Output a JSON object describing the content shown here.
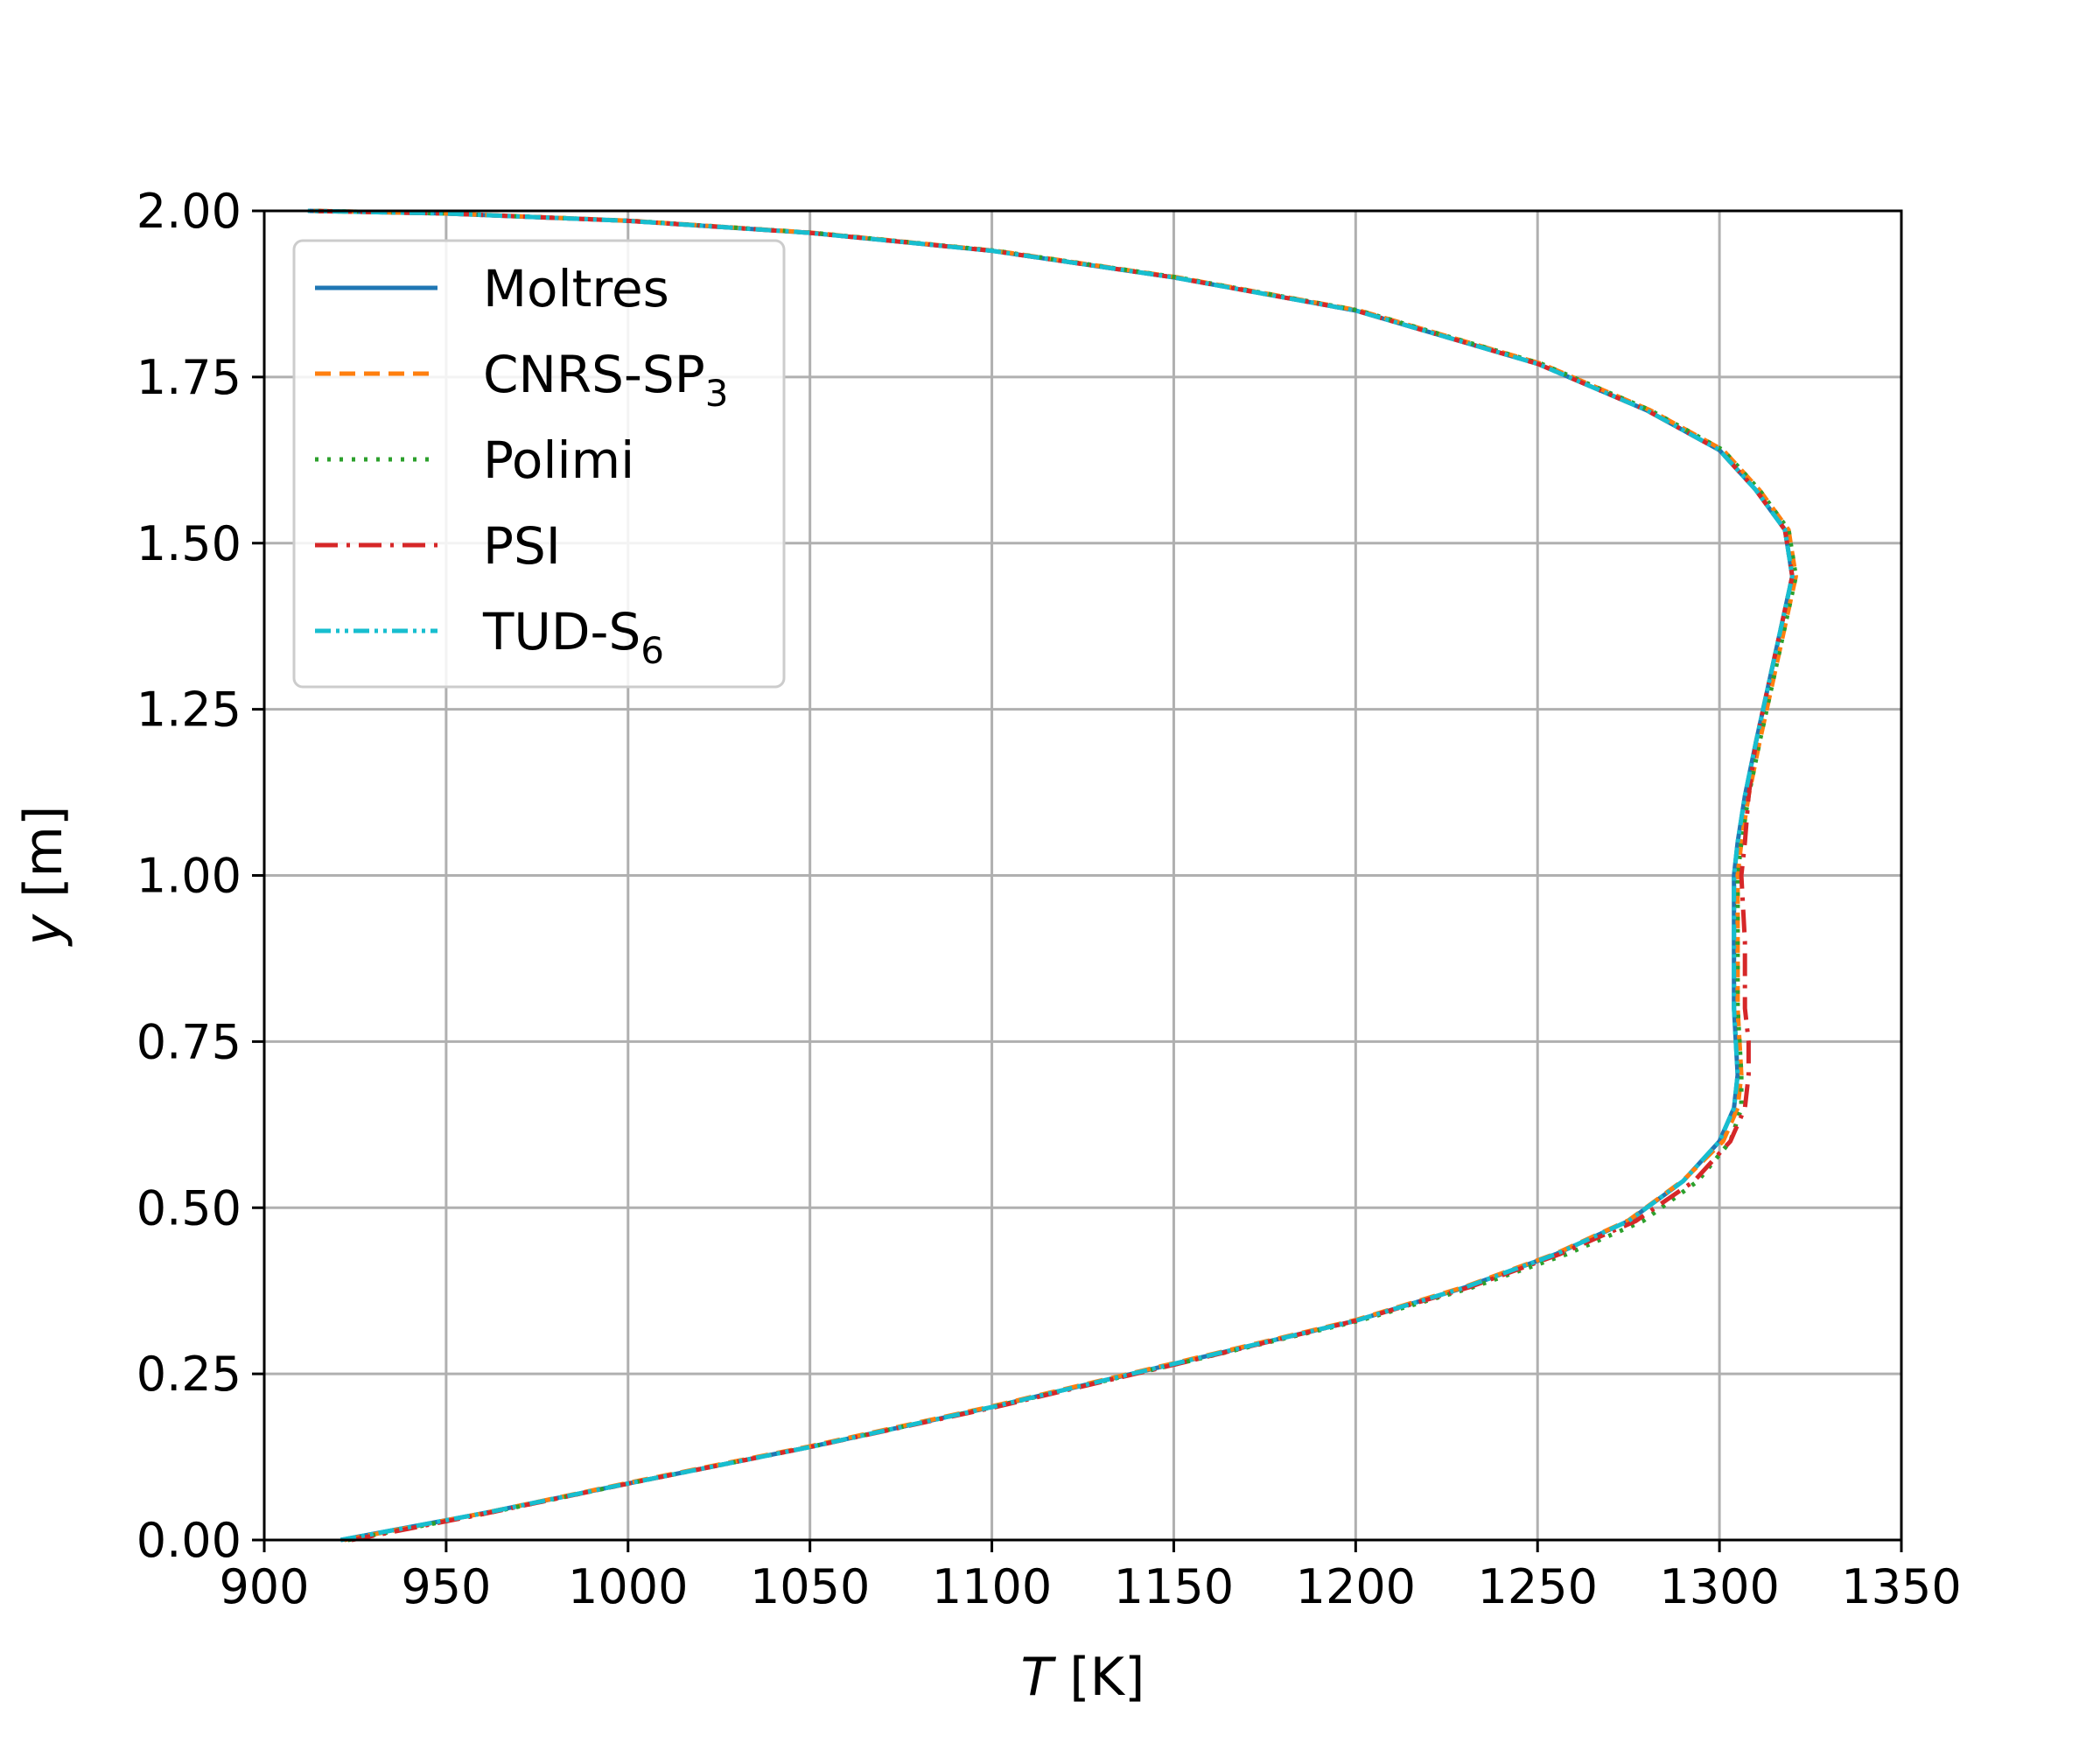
{
  "chart_data": {
    "type": "line",
    "xlabel": {
      "var": "T",
      "unit": " [K]"
    },
    "ylabel": {
      "var": "y",
      "unit": " [m]"
    },
    "xlim": [
      900,
      1350
    ],
    "ylim": [
      0,
      2
    ],
    "grid": true,
    "legend_position": "top-left",
    "xticks": [
      "900",
      "950",
      "1000",
      "1050",
      "1100",
      "1150",
      "1200",
      "1250",
      "1300",
      "1350"
    ],
    "yticks": [
      "0.00",
      "0.25",
      "0.50",
      "0.75",
      "1.00",
      "1.25",
      "1.50",
      "1.75",
      "2.00"
    ],
    "series": [
      {
        "name": "Moltres",
        "sub": "",
        "color": "#1f77b4",
        "dash": "",
        "points": [
          [
            921,
            0
          ],
          [
            960,
            0.04
          ],
          [
            1000,
            0.085
          ],
          [
            1050,
            0.14
          ],
          [
            1100,
            0.2
          ],
          [
            1150,
            0.265
          ],
          [
            1200,
            0.33
          ],
          [
            1230,
            0.38
          ],
          [
            1255,
            0.43
          ],
          [
            1275,
            0.48
          ],
          [
            1290,
            0.54
          ],
          [
            1300,
            0.6
          ],
          [
            1304,
            0.65
          ],
          [
            1305,
            0.7
          ],
          [
            1304,
            0.8
          ],
          [
            1304,
            0.9
          ],
          [
            1304,
            1.0
          ],
          [
            1305,
            1.05
          ],
          [
            1307,
            1.12
          ],
          [
            1310,
            1.2
          ],
          [
            1314,
            1.3
          ],
          [
            1318,
            1.4
          ],
          [
            1320,
            1.45
          ],
          [
            1318,
            1.52
          ],
          [
            1310,
            1.58
          ],
          [
            1300,
            1.64
          ],
          [
            1280,
            1.7
          ],
          [
            1250,
            1.77
          ],
          [
            1200,
            1.85
          ],
          [
            1150,
            1.9
          ],
          [
            1100,
            1.94
          ],
          [
            1050,
            1.967
          ],
          [
            1000,
            1.985
          ],
          [
            950,
            1.996
          ],
          [
            912,
            2.0
          ]
        ]
      },
      {
        "name": "CNRS-SP",
        "sub": "3",
        "color": "#ff7f0e",
        "dash": "18 10",
        "points": [
          [
            922,
            0
          ],
          [
            960,
            0.04
          ],
          [
            1000,
            0.086
          ],
          [
            1050,
            0.141
          ],
          [
            1100,
            0.201
          ],
          [
            1150,
            0.266
          ],
          [
            1200,
            0.331
          ],
          [
            1230,
            0.381
          ],
          [
            1255,
            0.431
          ],
          [
            1275,
            0.481
          ],
          [
            1290,
            0.541
          ],
          [
            1301,
            0.6
          ],
          [
            1305,
            0.65
          ],
          [
            1306,
            0.7
          ],
          [
            1305,
            0.8
          ],
          [
            1305,
            0.9
          ],
          [
            1305,
            1.0
          ],
          [
            1306,
            1.05
          ],
          [
            1308,
            1.12
          ],
          [
            1311,
            1.2
          ],
          [
            1315,
            1.3
          ],
          [
            1319,
            1.4
          ],
          [
            1321,
            1.45
          ],
          [
            1319,
            1.52
          ],
          [
            1311,
            1.58
          ],
          [
            1301,
            1.64
          ],
          [
            1281,
            1.7
          ],
          [
            1251,
            1.77
          ],
          [
            1201,
            1.85
          ],
          [
            1151,
            1.9
          ],
          [
            1101,
            1.94
          ],
          [
            1051,
            1.967
          ],
          [
            1001,
            1.985
          ],
          [
            951,
            1.996
          ],
          [
            913,
            2.0
          ]
        ]
      },
      {
        "name": "Polimi",
        "sub": "",
        "color": "#2ca02c",
        "dash": "4 10",
        "points": [
          [
            923,
            0
          ],
          [
            961,
            0.04
          ],
          [
            1001,
            0.086
          ],
          [
            1051,
            0.141
          ],
          [
            1101,
            0.201
          ],
          [
            1151,
            0.265
          ],
          [
            1201,
            0.33
          ],
          [
            1232,
            0.38
          ],
          [
            1258,
            0.43
          ],
          [
            1279,
            0.48
          ],
          [
            1294,
            0.54
          ],
          [
            1303,
            0.6
          ],
          [
            1306,
            0.65
          ],
          [
            1306,
            0.7
          ],
          [
            1305,
            0.8
          ],
          [
            1305,
            0.9
          ],
          [
            1305,
            1.0
          ],
          [
            1306,
            1.05
          ],
          [
            1308,
            1.12
          ],
          [
            1311,
            1.2
          ],
          [
            1315,
            1.3
          ],
          [
            1319,
            1.4
          ],
          [
            1321,
            1.45
          ],
          [
            1319,
            1.52
          ],
          [
            1311,
            1.58
          ],
          [
            1301,
            1.64
          ],
          [
            1281,
            1.7
          ],
          [
            1251,
            1.77
          ],
          [
            1201,
            1.85
          ],
          [
            1151,
            1.9
          ],
          [
            1101,
            1.94
          ],
          [
            1051,
            1.967
          ],
          [
            1001,
            1.985
          ],
          [
            951,
            1.996
          ],
          [
            913,
            2.0
          ]
        ]
      },
      {
        "name": "PSI",
        "sub": "",
        "color": "#d62728",
        "dash": "26 10 4 10",
        "points": [
          [
            924,
            0
          ],
          [
            961,
            0.04
          ],
          [
            1001,
            0.086
          ],
          [
            1051,
            0.141
          ],
          [
            1101,
            0.2
          ],
          [
            1151,
            0.265
          ],
          [
            1200,
            0.33
          ],
          [
            1231,
            0.38
          ],
          [
            1256,
            0.43
          ],
          [
            1277,
            0.48
          ],
          [
            1293,
            0.54
          ],
          [
            1303,
            0.6
          ],
          [
            1307,
            0.65
          ],
          [
            1308,
            0.7
          ],
          [
            1308,
            0.75
          ],
          [
            1307,
            0.8
          ],
          [
            1307,
            0.9
          ],
          [
            1306,
            1.0
          ],
          [
            1307,
            1.05
          ],
          [
            1308,
            1.12
          ],
          [
            1310,
            1.2
          ],
          [
            1314,
            1.3
          ],
          [
            1318,
            1.4
          ],
          [
            1320,
            1.45
          ],
          [
            1318,
            1.52
          ],
          [
            1310,
            1.58
          ],
          [
            1300,
            1.64
          ],
          [
            1280,
            1.7
          ],
          [
            1250,
            1.77
          ],
          [
            1200,
            1.85
          ],
          [
            1150,
            1.9
          ],
          [
            1100,
            1.94
          ],
          [
            1050,
            1.967
          ],
          [
            1000,
            1.985
          ],
          [
            950,
            1.996
          ],
          [
            912,
            2.0
          ]
        ]
      },
      {
        "name": "TUD-S",
        "sub": "6",
        "color": "#17becf",
        "dash": "18 6 4 6 4 6",
        "points": [
          [
            921,
            0
          ],
          [
            960,
            0.04
          ],
          [
            1000,
            0.085
          ],
          [
            1050,
            0.14
          ],
          [
            1100,
            0.2
          ],
          [
            1150,
            0.265
          ],
          [
            1200,
            0.33
          ],
          [
            1230,
            0.38
          ],
          [
            1255,
            0.43
          ],
          [
            1275,
            0.48
          ],
          [
            1290,
            0.54
          ],
          [
            1300,
            0.6
          ],
          [
            1304,
            0.65
          ],
          [
            1305,
            0.7
          ],
          [
            1304,
            0.8
          ],
          [
            1304,
            0.9
          ],
          [
            1304,
            1.0
          ],
          [
            1305,
            1.05
          ],
          [
            1307,
            1.12
          ],
          [
            1310,
            1.2
          ],
          [
            1314,
            1.3
          ],
          [
            1318,
            1.4
          ],
          [
            1320,
            1.45
          ],
          [
            1318,
            1.52
          ],
          [
            1310,
            1.58
          ],
          [
            1300,
            1.64
          ],
          [
            1280,
            1.7
          ],
          [
            1250,
            1.77
          ],
          [
            1200,
            1.85
          ],
          [
            1150,
            1.9
          ],
          [
            1100,
            1.94
          ],
          [
            1050,
            1.967
          ],
          [
            1000,
            1.985
          ],
          [
            950,
            1.996
          ],
          [
            912,
            2.0
          ]
        ]
      }
    ]
  }
}
